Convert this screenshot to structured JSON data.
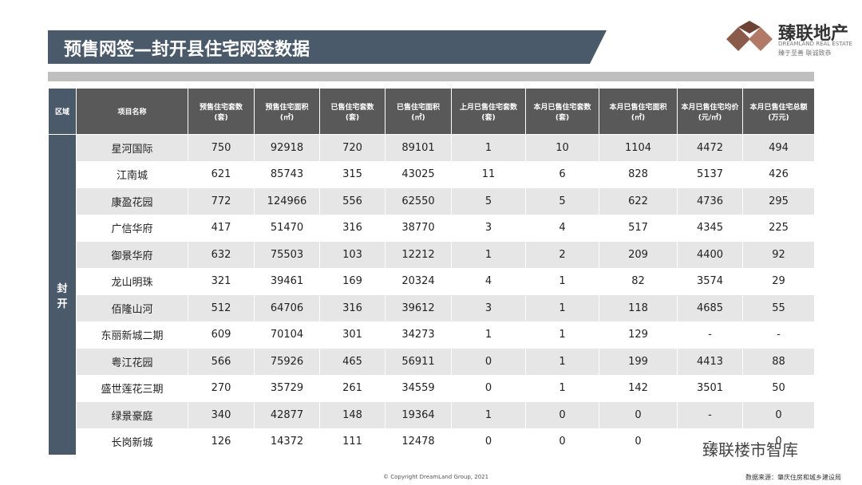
{
  "header": {
    "title": "预售网签—封开县住宅网签数据",
    "logo": "臻联地产",
    "logo_en": "DREAMLAND REAL ESTATE",
    "slogan": "臻于至善 联诚致恭"
  },
  "table": {
    "columns": [
      "区域",
      "项目名称",
      "预售住宅套数\n(套)",
      "预售住宅面积\n(㎡)",
      "已售住宅套数\n(套)",
      "已售住宅面积\n(㎡)",
      "上月已售住宅套数\n(套)",
      "本月已售住宅套数\n(套)",
      "本月已售住宅面积\n(㎡)",
      "本月已售住宅均价\n(元/㎡)",
      "本月已售住宅总额\n(万元)"
    ],
    "region": "封\n开",
    "rows": [
      [
        "星河国际",
        750,
        92918,
        720,
        89101,
        1,
        10,
        1104,
        4472,
        494
      ],
      [
        "江南城",
        621,
        85743,
        315,
        43025,
        11,
        6,
        828,
        5137,
        426
      ],
      [
        "康盈花园",
        772,
        124966,
        556,
        62550,
        5,
        5,
        622,
        4736,
        295
      ],
      [
        "广信华府",
        417,
        51470,
        316,
        38770,
        3,
        4,
        517,
        4345,
        225
      ],
      [
        "御景华府",
        632,
        75503,
        103,
        12212,
        1,
        2,
        209,
        4400,
        92
      ],
      [
        "龙山明珠",
        321,
        39461,
        169,
        20324,
        4,
        1,
        82,
        3574,
        29
      ],
      [
        "佰隆山河",
        512,
        64706,
        316,
        39612,
        3,
        1,
        118,
        4685,
        55
      ],
      [
        "东丽新城二期",
        609,
        70104,
        301,
        34273,
        1,
        1,
        129,
        "-",
        "-"
      ],
      [
        "粤江花园",
        566,
        75926,
        465,
        56911,
        0,
        1,
        199,
        4413,
        88
      ],
      [
        "盛世莲花三期",
        270,
        35729,
        261,
        34559,
        0,
        1,
        142,
        3501,
        50
      ],
      [
        "绿景豪庭",
        340,
        42877,
        148,
        19364,
        1,
        0,
        0,
        "-",
        0
      ],
      [
        "长岗新城",
        126,
        14372,
        111,
        12478,
        0,
        0,
        0,
        "-",
        0
      ]
    ]
  },
  "footer": {
    "copyright": "© Copyright DreamLand Group, 2021",
    "source": "数据来源：肇庆住房和城乡建设局",
    "watermark": "臻联楼市智库"
  }
}
